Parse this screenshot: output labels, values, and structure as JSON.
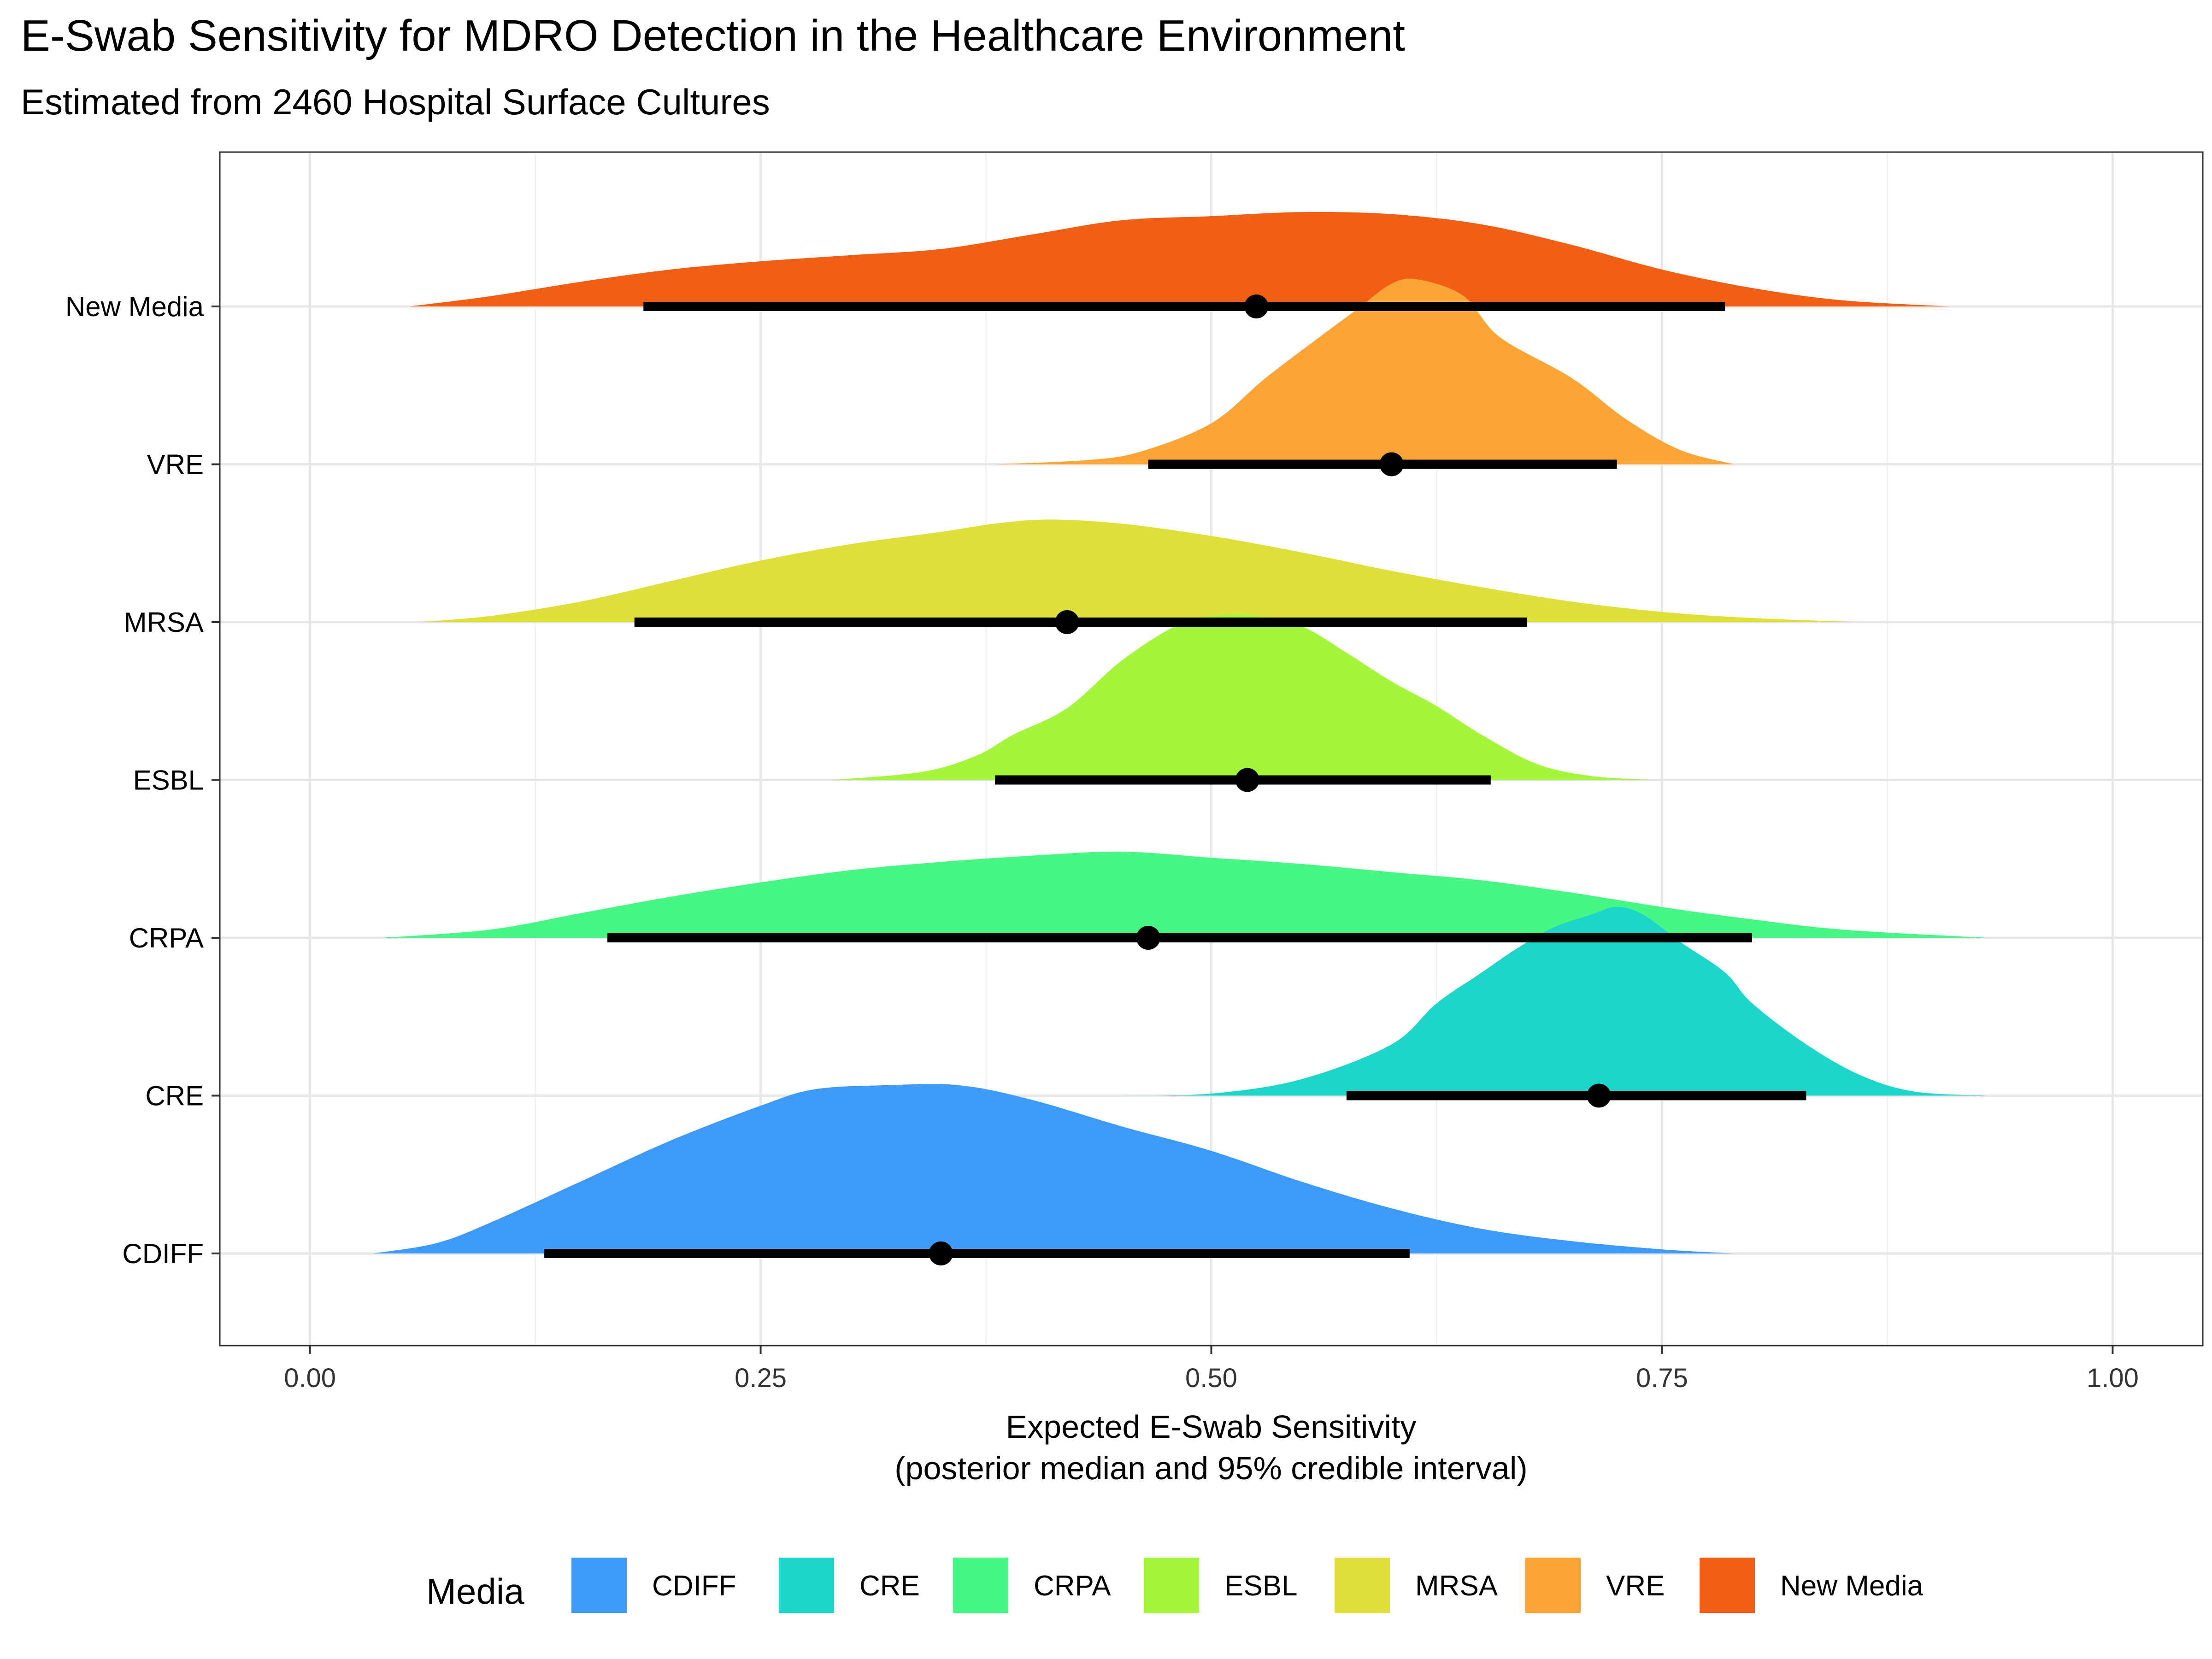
{
  "chart_data": {
    "type": "ridgeline",
    "title": "E-Swab Sensitivity for MDRO Detection in the Healthcare Environment",
    "subtitle": "Estimated from 2460 Hospital Surface Cultures",
    "xlabel_line1": "Expected E-Swab Sensitivity",
    "xlabel_line2": "(posterior median and 95% credible interval)",
    "xlim": [
      -0.05,
      1.05
    ],
    "x_ticks": [
      0,
      0.25,
      0.5,
      0.75,
      1
    ],
    "x_tick_labels": [
      "0.00",
      "0.25",
      "0.50",
      "0.75",
      "1.00"
    ],
    "legend": {
      "title": "Media",
      "position": "bottom"
    },
    "grid": true,
    "series": [
      {
        "name": "CDIFF",
        "color": "#3d9af8",
        "median": 0.35,
        "ci": [
          0.13,
          0.61
        ],
        "density": [
          [
            0.035,
            0
          ],
          [
            0.07,
            0.05
          ],
          [
            0.1,
            0.15
          ],
          [
            0.15,
            0.35
          ],
          [
            0.2,
            0.55
          ],
          [
            0.25,
            0.72
          ],
          [
            0.28,
            0.8
          ],
          [
            0.32,
            0.82
          ],
          [
            0.36,
            0.82
          ],
          [
            0.4,
            0.75
          ],
          [
            0.45,
            0.62
          ],
          [
            0.5,
            0.5
          ],
          [
            0.55,
            0.35
          ],
          [
            0.6,
            0.22
          ],
          [
            0.65,
            0.12
          ],
          [
            0.7,
            0.06
          ],
          [
            0.75,
            0.02
          ],
          [
            0.79,
            0
          ]
        ]
      },
      {
        "name": "CRE",
        "color": "#1cd6c9",
        "median": 0.715,
        "ci": [
          0.575,
          0.83
        ],
        "density": [
          [
            0.45,
            0
          ],
          [
            0.5,
            0.01
          ],
          [
            0.55,
            0.08
          ],
          [
            0.6,
            0.25
          ],
          [
            0.625,
            0.45
          ],
          [
            0.65,
            0.6
          ],
          [
            0.67,
            0.72
          ],
          [
            0.69,
            0.82
          ],
          [
            0.71,
            0.88
          ],
          [
            0.725,
            0.92
          ],
          [
            0.74,
            0.88
          ],
          [
            0.76,
            0.75
          ],
          [
            0.785,
            0.6
          ],
          [
            0.8,
            0.45
          ],
          [
            0.83,
            0.25
          ],
          [
            0.86,
            0.1
          ],
          [
            0.89,
            0.02
          ],
          [
            0.93,
            0
          ]
        ]
      },
      {
        "name": "CRPA",
        "color": "#46f784",
        "median": 0.465,
        "ci": [
          0.165,
          0.8
        ],
        "density": [
          [
            0.04,
            0
          ],
          [
            0.1,
            0.04
          ],
          [
            0.15,
            0.12
          ],
          [
            0.2,
            0.2
          ],
          [
            0.25,
            0.27
          ],
          [
            0.3,
            0.33
          ],
          [
            0.35,
            0.37
          ],
          [
            0.4,
            0.4
          ],
          [
            0.45,
            0.42
          ],
          [
            0.5,
            0.39
          ],
          [
            0.55,
            0.36
          ],
          [
            0.6,
            0.32
          ],
          [
            0.65,
            0.28
          ],
          [
            0.7,
            0.22
          ],
          [
            0.75,
            0.15
          ],
          [
            0.8,
            0.09
          ],
          [
            0.85,
            0.04
          ],
          [
            0.93,
            0
          ]
        ]
      },
      {
        "name": "ESBL",
        "color": "#a4f63a",
        "median": 0.52,
        "ci": [
          0.38,
          0.655
        ],
        "density": [
          [
            0.29,
            0
          ],
          [
            0.34,
            0.04
          ],
          [
            0.37,
            0.12
          ],
          [
            0.39,
            0.22
          ],
          [
            0.42,
            0.35
          ],
          [
            0.45,
            0.58
          ],
          [
            0.48,
            0.75
          ],
          [
            0.5,
            0.8
          ],
          [
            0.525,
            0.8
          ],
          [
            0.55,
            0.75
          ],
          [
            0.575,
            0.62
          ],
          [
            0.6,
            0.48
          ],
          [
            0.625,
            0.36
          ],
          [
            0.65,
            0.22
          ],
          [
            0.68,
            0.08
          ],
          [
            0.71,
            0.02
          ],
          [
            0.745,
            0
          ]
        ]
      },
      {
        "name": "MRSA",
        "color": "#dfdf3a",
        "median": 0.42,
        "ci": [
          0.18,
          0.675
        ],
        "density": [
          [
            0.06,
            0
          ],
          [
            0.1,
            0.03
          ],
          [
            0.15,
            0.1
          ],
          [
            0.2,
            0.2
          ],
          [
            0.25,
            0.3
          ],
          [
            0.3,
            0.38
          ],
          [
            0.35,
            0.44
          ],
          [
            0.38,
            0.48
          ],
          [
            0.41,
            0.5
          ],
          [
            0.45,
            0.48
          ],
          [
            0.5,
            0.42
          ],
          [
            0.55,
            0.34
          ],
          [
            0.6,
            0.25
          ],
          [
            0.65,
            0.17
          ],
          [
            0.7,
            0.1
          ],
          [
            0.75,
            0.05
          ],
          [
            0.8,
            0.02
          ],
          [
            0.86,
            0
          ]
        ]
      },
      {
        "name": "VRE",
        "color": "#fca536",
        "median": 0.6,
        "ci": [
          0.465,
          0.725
        ],
        "density": [
          [
            0.38,
            0
          ],
          [
            0.43,
            0.02
          ],
          [
            0.46,
            0.06
          ],
          [
            0.5,
            0.2
          ],
          [
            0.53,
            0.42
          ],
          [
            0.56,
            0.62
          ],
          [
            0.58,
            0.75
          ],
          [
            0.6,
            0.88
          ],
          [
            0.615,
            0.9
          ],
          [
            0.64,
            0.82
          ],
          [
            0.66,
            0.62
          ],
          [
            0.7,
            0.42
          ],
          [
            0.73,
            0.22
          ],
          [
            0.76,
            0.07
          ],
          [
            0.79,
            0
          ]
        ]
      },
      {
        "name": "New Media",
        "color": "#f05f14",
        "median": 0.525,
        "ci": [
          0.185,
          0.785
        ],
        "density": [
          [
            0.055,
            0
          ],
          [
            0.1,
            0.05
          ],
          [
            0.15,
            0.12
          ],
          [
            0.2,
            0.18
          ],
          [
            0.25,
            0.22
          ],
          [
            0.3,
            0.25
          ],
          [
            0.35,
            0.28
          ],
          [
            0.4,
            0.35
          ],
          [
            0.45,
            0.42
          ],
          [
            0.5,
            0.44
          ],
          [
            0.55,
            0.46
          ],
          [
            0.6,
            0.45
          ],
          [
            0.65,
            0.4
          ],
          [
            0.7,
            0.3
          ],
          [
            0.75,
            0.18
          ],
          [
            0.8,
            0.09
          ],
          [
            0.85,
            0.03
          ],
          [
            0.91,
            0
          ]
        ]
      }
    ]
  }
}
